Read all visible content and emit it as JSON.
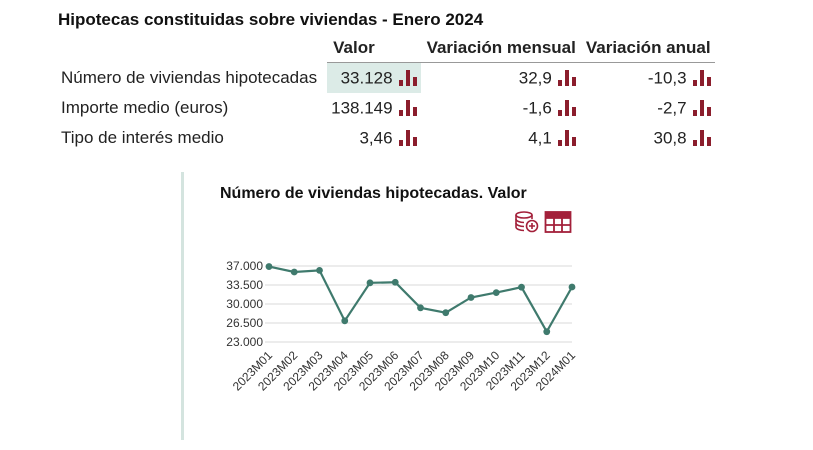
{
  "page": {
    "title": "Hipotecas constituidas sobre viviendas - Enero 2024"
  },
  "table": {
    "headers": [
      "Valor",
      "Variación mensual",
      "Variación anual"
    ],
    "rows": [
      {
        "label": "Número de viviendas hipotecadas",
        "valor": "33.128",
        "mensual": "32,9",
        "anual": "-10,3"
      },
      {
        "label": "Importe medio (euros)",
        "valor": "138.149",
        "mensual": "-1,6",
        "anual": "-2,7"
      },
      {
        "label": "Tipo de interés medio",
        "valor": "3,46",
        "mensual": "4,1",
        "anual": "30,8"
      }
    ],
    "icon": "bar-chart-icon",
    "accent_color": "#8b1d2c",
    "highlight_color": "#dcebe7"
  },
  "chart_tools": {
    "icons": [
      "database-add-icon",
      "table-icon"
    ],
    "color": "#a3203a"
  },
  "chart_data": {
    "type": "line",
    "title": "Número de viviendas hipotecadas. Valor",
    "xlabel": "",
    "ylabel": "",
    "categories": [
      "2023M01",
      "2023M02",
      "2023M03",
      "2023M04",
      "2023M05",
      "2023M06",
      "2023M07",
      "2023M08",
      "2023M09",
      "2023M10",
      "2023M11",
      "2023M12",
      "2024M01"
    ],
    "series": [
      {
        "values": [
          36900,
          35900,
          36200,
          26900,
          33900,
          34000,
          29300,
          28400,
          31200,
          32100,
          33100,
          24900,
          33128
        ],
        "color": "#3f7a6d"
      }
    ],
    "yticks": [
      "37.000",
      "33.500",
      "30.000",
      "26.500",
      "23.000"
    ],
    "ytick_values": [
      37000,
      33500,
      30000,
      26500,
      23000
    ],
    "ylim": [
      23000,
      37000
    ],
    "grid": true,
    "legend": "none"
  }
}
